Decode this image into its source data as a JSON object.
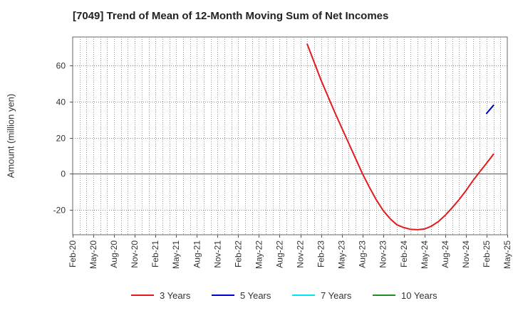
{
  "chart_data": {
    "type": "line",
    "title": "[7049]  Trend of Mean of 12-Month Moving Sum of Net Incomes",
    "xlabel": "",
    "ylabel": "Amount (million yen)",
    "x_ticks": [
      "Feb-20",
      "May-20",
      "Aug-20",
      "Nov-20",
      "Feb-21",
      "May-21",
      "Aug-21",
      "Nov-21",
      "Feb-22",
      "May-22",
      "Aug-22",
      "Nov-22",
      "Feb-23",
      "May-23",
      "Aug-23",
      "Nov-23",
      "Feb-24",
      "May-24",
      "Aug-24",
      "Nov-24",
      "Feb-25",
      "May-25"
    ],
    "y_ticks": [
      60,
      40,
      20,
      0,
      -20
    ],
    "ylim": [
      -34,
      76
    ],
    "xlim": [
      "Feb-20",
      "May-25"
    ],
    "grid": true,
    "legend_position": "bottom",
    "series": [
      {
        "name": "3 Years",
        "color": "#e31a1c",
        "points": [
          [
            "Dec-22",
            72
          ],
          [
            "Jan-23",
            62
          ],
          [
            "Feb-23",
            52
          ],
          [
            "Mar-23",
            43
          ],
          [
            "Apr-23",
            34
          ],
          [
            "May-23",
            25.5
          ],
          [
            "Jun-23",
            17
          ],
          [
            "Jul-23",
            8.5
          ],
          [
            "Aug-23",
            0
          ],
          [
            "Sep-23",
            -7.5
          ],
          [
            "Oct-23",
            -14.5
          ],
          [
            "Nov-23",
            -20.5
          ],
          [
            "Dec-23",
            -25
          ],
          [
            "Jan-24",
            -28.5
          ],
          [
            "Feb-24",
            -30
          ],
          [
            "Mar-24",
            -31
          ],
          [
            "Apr-24",
            -31.2
          ],
          [
            "May-24",
            -30.8
          ],
          [
            "Jun-24",
            -29.2
          ],
          [
            "Jul-24",
            -26.7
          ],
          [
            "Aug-24",
            -23.2
          ],
          [
            "Sep-24",
            -19
          ],
          [
            "Oct-24",
            -14.5
          ],
          [
            "Nov-24",
            -9.5
          ],
          [
            "Dec-24",
            -4
          ],
          [
            "Jan-25",
            1
          ],
          [
            "Feb-25",
            5.8
          ],
          [
            "Mar-25",
            10.8
          ]
        ]
      },
      {
        "name": "5 Years",
        "color": "#0000cc",
        "points": [
          [
            "Feb-25",
            33.5
          ],
          [
            "Mar-25",
            38
          ]
        ]
      },
      {
        "name": "7 Years",
        "color": "#00e5ee",
        "points": []
      },
      {
        "name": "10 Years",
        "color": "#228b22",
        "points": []
      }
    ]
  }
}
